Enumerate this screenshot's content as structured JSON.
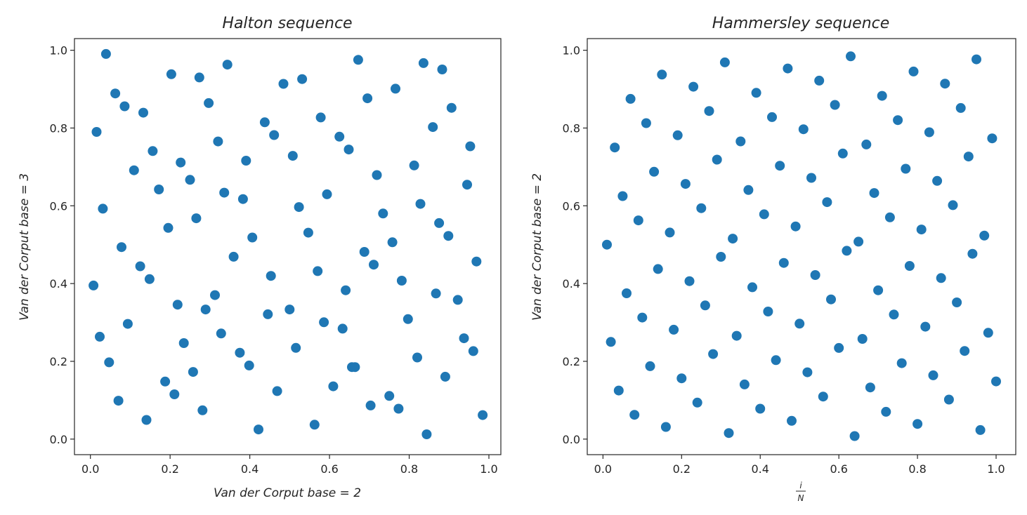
{
  "chart_data": [
    {
      "type": "scatter",
      "title": "Halton sequence",
      "xlabel": "Van der Corput base = 2",
      "ylabel": "Van der Corput base = 3",
      "xlim": [
        -0.04,
        1.03
      ],
      "ylim": [
        -0.04,
        1.03
      ],
      "xticks": [
        "0.0",
        "0.2",
        "0.4",
        "0.6",
        "0.8",
        "1.0"
      ],
      "yticks": [
        "0.0",
        "0.2",
        "0.4",
        "0.6",
        "0.8",
        "1.0"
      ],
      "grid": false,
      "marker_color": "#1f77b4",
      "series": [
        {
          "points": [
            [
              0.5,
              0.3333
            ],
            [
              0.25,
              0.6667
            ],
            [
              0.75,
              0.1111
            ],
            [
              0.125,
              0.4444
            ],
            [
              0.625,
              0.7778
            ],
            [
              0.375,
              0.2222
            ],
            [
              0.875,
              0.5556
            ],
            [
              0.0625,
              0.8889
            ],
            [
              0.5625,
              0.037
            ],
            [
              0.3125,
              0.3704
            ],
            [
              0.8125,
              0.7037
            ],
            [
              0.1875,
              0.1481
            ],
            [
              0.6875,
              0.4815
            ],
            [
              0.4375,
              0.8148
            ],
            [
              0.9375,
              0.2593
            ],
            [
              0.0313,
              0.5926
            ],
            [
              0.5313,
              0.9259
            ],
            [
              0.2813,
              0.0741
            ],
            [
              0.7813,
              0.4074
            ],
            [
              0.1563,
              0.7407
            ],
            [
              0.6563,
              0.1852
            ],
            [
              0.4063,
              0.5185
            ],
            [
              0.9063,
              0.8519
            ],
            [
              0.0938,
              0.2963
            ],
            [
              0.5938,
              0.6296
            ],
            [
              0.3438,
              0.963
            ],
            [
              0.8438,
              0.0123
            ],
            [
              0.2188,
              0.3457
            ],
            [
              0.7188,
              0.679
            ],
            [
              0.4688,
              0.1235
            ],
            [
              0.9688,
              0.4568
            ],
            [
              0.0156,
              0.7901
            ],
            [
              0.5156,
              0.2346
            ],
            [
              0.2656,
              0.5679
            ],
            [
              0.7656,
              0.9012
            ],
            [
              0.1406,
              0.0494
            ],
            [
              0.6406,
              0.3827
            ],
            [
              0.3906,
              0.716
            ],
            [
              0.8906,
              0.1605
            ],
            [
              0.0781,
              0.4938
            ],
            [
              0.5781,
              0.8272
            ],
            [
              0.3281,
              0.2716
            ],
            [
              0.8281,
              0.6049
            ],
            [
              0.2031,
              0.9383
            ],
            [
              0.7031,
              0.0864
            ],
            [
              0.4531,
              0.4198
            ],
            [
              0.9531,
              0.7531
            ],
            [
              0.0469,
              0.1975
            ],
            [
              0.5469,
              0.5309
            ],
            [
              0.2969,
              0.8642
            ],
            [
              0.7969,
              0.3086
            ],
            [
              0.1719,
              0.642
            ],
            [
              0.6719,
              0.9753
            ],
            [
              0.4219,
              0.0247
            ],
            [
              0.9219,
              0.358
            ],
            [
              0.1094,
              0.6914
            ],
            [
              0.6094,
              0.1358
            ],
            [
              0.3594,
              0.4691
            ],
            [
              0.8594,
              0.8025
            ],
            [
              0.2344,
              0.2469
            ],
            [
              0.7344,
              0.5802
            ],
            [
              0.4844,
              0.9136
            ],
            [
              0.9844,
              0.0617
            ],
            [
              0.0078,
              0.3951
            ],
            [
              0.5078,
              0.7284
            ],
            [
              0.2578,
              0.1728
            ],
            [
              0.7578,
              0.5062
            ],
            [
              0.1328,
              0.8395
            ],
            [
              0.6328,
              0.284
            ],
            [
              0.3828,
              0.6173
            ],
            [
              0.8828,
              0.9506
            ],
            [
              0.0703,
              0.0988
            ],
            [
              0.5703,
              0.4321
            ],
            [
              0.3203,
              0.7654
            ],
            [
              0.8203,
              0.2099
            ],
            [
              0.1953,
              0.5432
            ],
            [
              0.6953,
              0.8765
            ],
            [
              0.4453,
              0.321
            ],
            [
              0.9453,
              0.6543
            ],
            [
              0.0234,
              0.2634
            ],
            [
              0.5234,
              0.5967
            ],
            [
              0.2734,
              0.93
            ],
            [
              0.7734,
              0.0782
            ],
            [
              0.1484,
              0.4115
            ],
            [
              0.6484,
              0.7448
            ],
            [
              0.3984,
              0.1893
            ],
            [
              0.8984,
              0.5226
            ],
            [
              0.0859,
              0.8559
            ],
            [
              0.5859,
              0.3004
            ],
            [
              0.3359,
              0.6337
            ],
            [
              0.8359,
              0.967
            ],
            [
              0.2109,
              0.1152
            ],
            [
              0.7109,
              0.4486
            ],
            [
              0.4609,
              0.7819
            ],
            [
              0.9609,
              0.2263
            ],
            [
              0.0391,
              0.9904
            ],
            [
              0.2891,
              0.3333
            ],
            [
              0.6641,
              0.1852
            ],
            [
              0.8672,
              0.3745
            ],
            [
              0.2266,
              0.7113
            ]
          ]
        }
      ]
    },
    {
      "type": "scatter",
      "title": "Hammersley sequence",
      "xlabel": "i/N",
      "ylabel": "Van der Corput base = 2",
      "xlim": [
        -0.04,
        1.05
      ],
      "ylim": [
        -0.04,
        1.03
      ],
      "xticks": [
        "0.0",
        "0.2",
        "0.4",
        "0.6",
        "0.8",
        "1.0"
      ],
      "yticks": [
        "0.0",
        "0.2",
        "0.4",
        "0.6",
        "0.8",
        "1.0"
      ],
      "grid": false,
      "marker_color": "#1f77b4",
      "series": [
        {
          "points": [
            [
              0.01,
              0.5
            ],
            [
              0.02,
              0.25
            ],
            [
              0.03,
              0.75
            ],
            [
              0.04,
              0.125
            ],
            [
              0.05,
              0.625
            ],
            [
              0.06,
              0.375
            ],
            [
              0.07,
              0.875
            ],
            [
              0.08,
              0.0625
            ],
            [
              0.09,
              0.5625
            ],
            [
              0.1,
              0.3125
            ],
            [
              0.11,
              0.8125
            ],
            [
              0.12,
              0.1875
            ],
            [
              0.13,
              0.6875
            ],
            [
              0.14,
              0.4375
            ],
            [
              0.15,
              0.9375
            ],
            [
              0.16,
              0.0313
            ],
            [
              0.17,
              0.5313
            ],
            [
              0.18,
              0.2813
            ],
            [
              0.19,
              0.7813
            ],
            [
              0.2,
              0.1563
            ],
            [
              0.21,
              0.6563
            ],
            [
              0.22,
              0.4063
            ],
            [
              0.23,
              0.9063
            ],
            [
              0.24,
              0.0938
            ],
            [
              0.25,
              0.5938
            ],
            [
              0.26,
              0.3438
            ],
            [
              0.27,
              0.8438
            ],
            [
              0.28,
              0.2188
            ],
            [
              0.29,
              0.7188
            ],
            [
              0.3,
              0.4688
            ],
            [
              0.31,
              0.9688
            ],
            [
              0.32,
              0.0156
            ],
            [
              0.33,
              0.5156
            ],
            [
              0.34,
              0.2656
            ],
            [
              0.35,
              0.7656
            ],
            [
              0.36,
              0.1406
            ],
            [
              0.37,
              0.6406
            ],
            [
              0.38,
              0.3906
            ],
            [
              0.39,
              0.8906
            ],
            [
              0.4,
              0.0781
            ],
            [
              0.41,
              0.5781
            ],
            [
              0.42,
              0.3281
            ],
            [
              0.43,
              0.8281
            ],
            [
              0.44,
              0.2031
            ],
            [
              0.45,
              0.7031
            ],
            [
              0.46,
              0.4531
            ],
            [
              0.47,
              0.9531
            ],
            [
              0.48,
              0.0469
            ],
            [
              0.49,
              0.5469
            ],
            [
              0.5,
              0.2969
            ],
            [
              0.51,
              0.7969
            ],
            [
              0.52,
              0.1719
            ],
            [
              0.53,
              0.6719
            ],
            [
              0.54,
              0.4219
            ],
            [
              0.55,
              0.9219
            ],
            [
              0.56,
              0.1094
            ],
            [
              0.57,
              0.6094
            ],
            [
              0.58,
              0.3594
            ],
            [
              0.59,
              0.8594
            ],
            [
              0.6,
              0.2344
            ],
            [
              0.61,
              0.7344
            ],
            [
              0.62,
              0.4844
            ],
            [
              0.63,
              0.9844
            ],
            [
              0.64,
              0.0078
            ],
            [
              0.65,
              0.5078
            ],
            [
              0.66,
              0.2578
            ],
            [
              0.67,
              0.7578
            ],
            [
              0.68,
              0.1328
            ],
            [
              0.69,
              0.6328
            ],
            [
              0.7,
              0.3828
            ],
            [
              0.71,
              0.8828
            ],
            [
              0.72,
              0.0703
            ],
            [
              0.73,
              0.5703
            ],
            [
              0.74,
              0.3203
            ],
            [
              0.75,
              0.8203
            ],
            [
              0.76,
              0.1953
            ],
            [
              0.77,
              0.6953
            ],
            [
              0.78,
              0.4453
            ],
            [
              0.79,
              0.9453
            ],
            [
              0.8,
              0.0391
            ],
            [
              0.81,
              0.5391
            ],
            [
              0.82,
              0.2891
            ],
            [
              0.83,
              0.7891
            ],
            [
              0.84,
              0.1641
            ],
            [
              0.85,
              0.6641
            ],
            [
              0.86,
              0.4141
            ],
            [
              0.87,
              0.9141
            ],
            [
              0.88,
              0.1016
            ],
            [
              0.89,
              0.6016
            ],
            [
              0.9,
              0.3516
            ],
            [
              0.91,
              0.8516
            ],
            [
              0.92,
              0.2266
            ],
            [
              0.93,
              0.7266
            ],
            [
              0.94,
              0.4766
            ],
            [
              0.95,
              0.9766
            ],
            [
              0.96,
              0.0234
            ],
            [
              0.97,
              0.5234
            ],
            [
              0.98,
              0.2734
            ],
            [
              0.99,
              0.7734
            ],
            [
              1.0,
              0.1484
            ]
          ]
        }
      ]
    }
  ]
}
